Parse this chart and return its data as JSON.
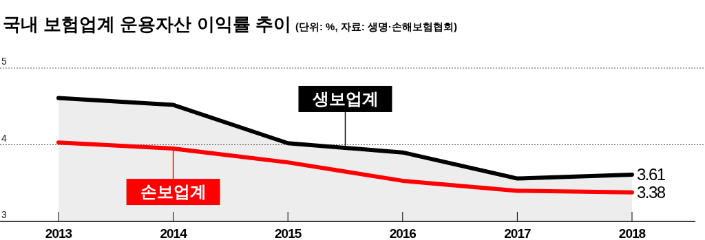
{
  "chart_data": {
    "type": "line",
    "title": "국내 보험업계 운용자산 이익률 추이",
    "subtitle": "(단위: %, 자료: 생명·손해보험협회)",
    "categories": [
      "2013",
      "2014",
      "2015",
      "2016",
      "2017",
      "2018"
    ],
    "series": [
      {
        "name": "생보업계",
        "type": "area",
        "color": "#000000",
        "values": [
          4.61,
          4.52,
          4.02,
          3.9,
          3.56,
          3.61
        ],
        "value_labels": [
          null,
          null,
          null,
          null,
          null,
          "3.61"
        ]
      },
      {
        "name": "손보업계",
        "color": "#ff0000",
        "values": [
          4.03,
          3.95,
          3.77,
          3.53,
          3.4,
          3.38
        ],
        "value_labels": [
          null,
          null,
          null,
          null,
          null,
          "3.38"
        ]
      }
    ],
    "ylim": [
      3,
      5
    ],
    "yticks": [
      3,
      4,
      5
    ],
    "grid": "y"
  }
}
